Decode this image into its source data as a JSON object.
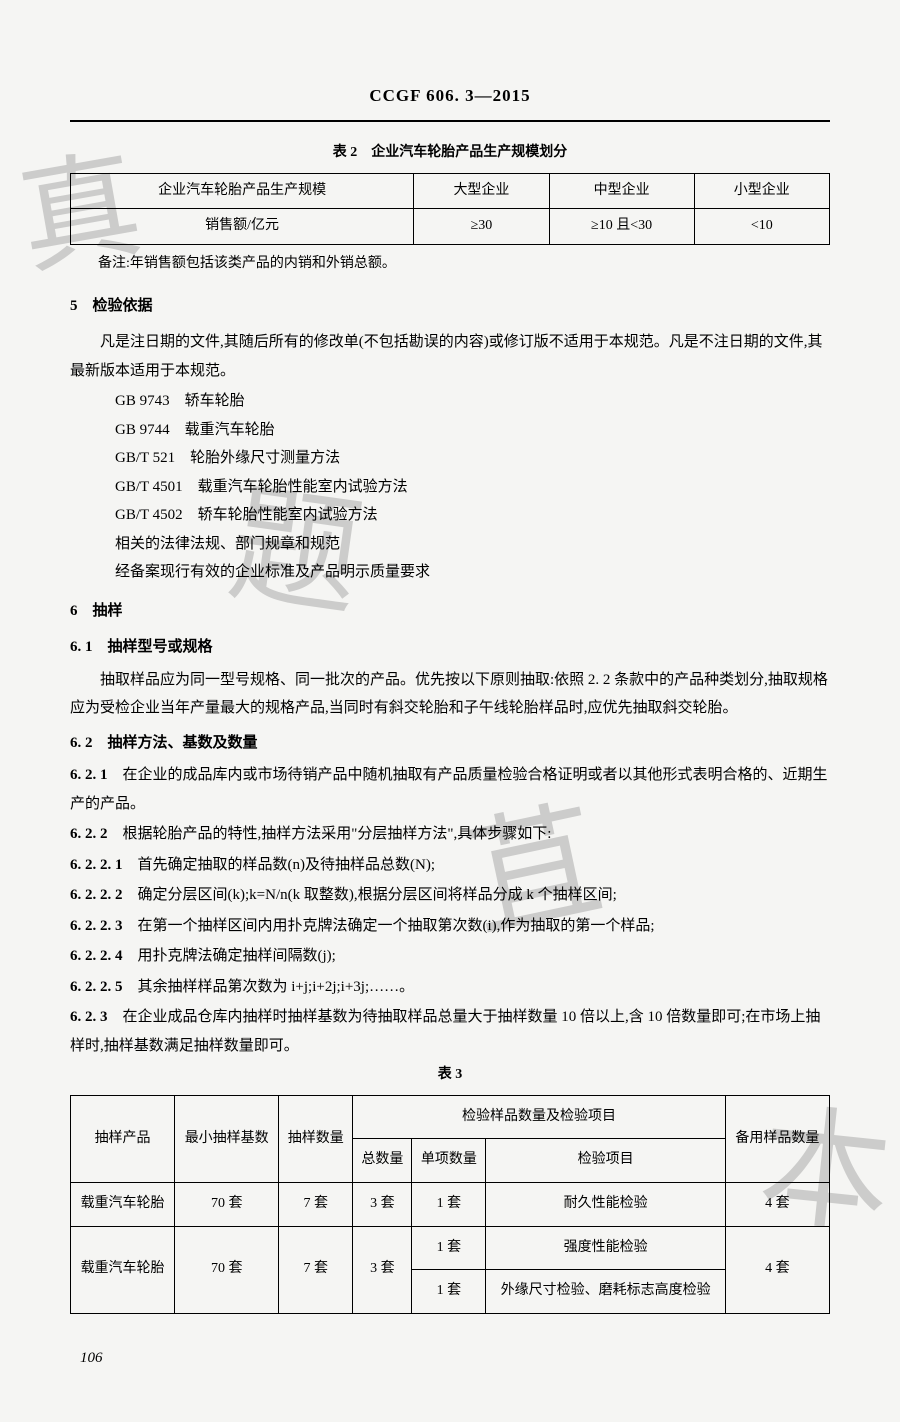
{
  "header": {
    "title": "CCGF 606. 3—2015"
  },
  "watermark": {
    "w1": "真",
    "w2": "题",
    "w3": "苴",
    "w4": "本"
  },
  "table2": {
    "caption": "表 2　企业汽车轮胎产品生产规模划分",
    "headers": [
      "企业汽车轮胎产品生产规模",
      "大型企业",
      "中型企业",
      "小型企业"
    ],
    "row_label": "销售额/亿元",
    "cells": [
      "≥30",
      "≥10 且<30",
      "<10"
    ],
    "note": "备注:年销售额包括该类产品的内销和外销总额。"
  },
  "section5": {
    "heading": "5　检验依据",
    "para": "凡是注日期的文件,其随后所有的修改单(不包括勘误的内容)或修订版不适用于本规范。凡是不注日期的文件,其最新版本适用于本规范。",
    "refs": [
      "GB 9743　轿车轮胎",
      "GB 9744　载重汽车轮胎",
      "GB/T 521　轮胎外缘尺寸测量方法",
      "GB/T 4501　载重汽车轮胎性能室内试验方法",
      "GB/T 4502　轿车轮胎性能室内试验方法",
      "相关的法律法规、部门规章和规范",
      "经备案现行有效的企业标准及产品明示质量要求"
    ]
  },
  "section6": {
    "heading": "6　抽样",
    "s6_1": {
      "heading": "6. 1　抽样型号或规格",
      "para": "抽取样品应为同一型号规格、同一批次的产品。优先按以下原则抽取:依照 2. 2 条款中的产品种类划分,抽取规格应为受检企业当年产量最大的规格产品,当同时有斜交轮胎和子午线轮胎样品时,应优先抽取斜交轮胎。"
    },
    "s6_2": {
      "heading": "6. 2　抽样方法、基数及数量",
      "p6_2_1_num": "6. 2. 1",
      "p6_2_1": "　在企业的成品库内或市场待销产品中随机抽取有产品质量检验合格证明或者以其他形式表明合格的、近期生产的产品。",
      "p6_2_2_num": "6. 2. 2",
      "p6_2_2": "　根据轮胎产品的特性,抽样方法采用\"分层抽样方法\",具体步骤如下:",
      "p6_2_2_1_num": "6. 2. 2. 1",
      "p6_2_2_1": "　首先确定抽取的样品数(n)及待抽样品总数(N);",
      "p6_2_2_2_num": "6. 2. 2. 2",
      "p6_2_2_2": "　确定分层区间(k);k=N/n(k 取整数),根据分层区间将样品分成 k 个抽样区间;",
      "p6_2_2_3_num": "6. 2. 2. 3",
      "p6_2_2_3": "　在第一个抽样区间内用扑克牌法确定一个抽取第次数(i),作为抽取的第一个样品;",
      "p6_2_2_4_num": "6. 2. 2. 4",
      "p6_2_2_4": "　用扑克牌法确定抽样间隔数(j);",
      "p6_2_2_5_num": "6. 2. 2. 5",
      "p6_2_2_5": "　其余抽样样品第次数为 i+j;i+2j;i+3j;……。",
      "p6_2_3_num": "6. 2. 3",
      "p6_2_3": "　在企业成品仓库内抽样时抽样基数为待抽取样品总量大于抽样数量 10 倍以上,含 10 倍数量即可;在市场上抽样时,抽样基数满足抽样数量即可。"
    }
  },
  "table3": {
    "caption": "表 3",
    "headers": {
      "c1": "抽样产品",
      "c2": "最小抽样基数",
      "c3": "抽样数量",
      "c4group": "检验样品数量及检验项目",
      "c4a": "总数量",
      "c4b": "单项数量",
      "c4c": "检验项目",
      "c5": "备用样品数量"
    },
    "rows": [
      {
        "product": "载重汽车轮胎",
        "base": "70 套",
        "qty": "7 套",
        "total": "3 套",
        "single": "1 套",
        "item": "耐久性能检验",
        "spare": "4 套"
      },
      {
        "product": "载重汽车轮胎",
        "base": "70 套",
        "qty": "7 套",
        "total": "3 套",
        "sub": [
          {
            "single": "1 套",
            "item": "强度性能检验"
          },
          {
            "single": "1 套",
            "item": "外缘尺寸检验、磨耗标志高度检验"
          }
        ],
        "spare": "4 套"
      }
    ]
  },
  "page_number": "106"
}
